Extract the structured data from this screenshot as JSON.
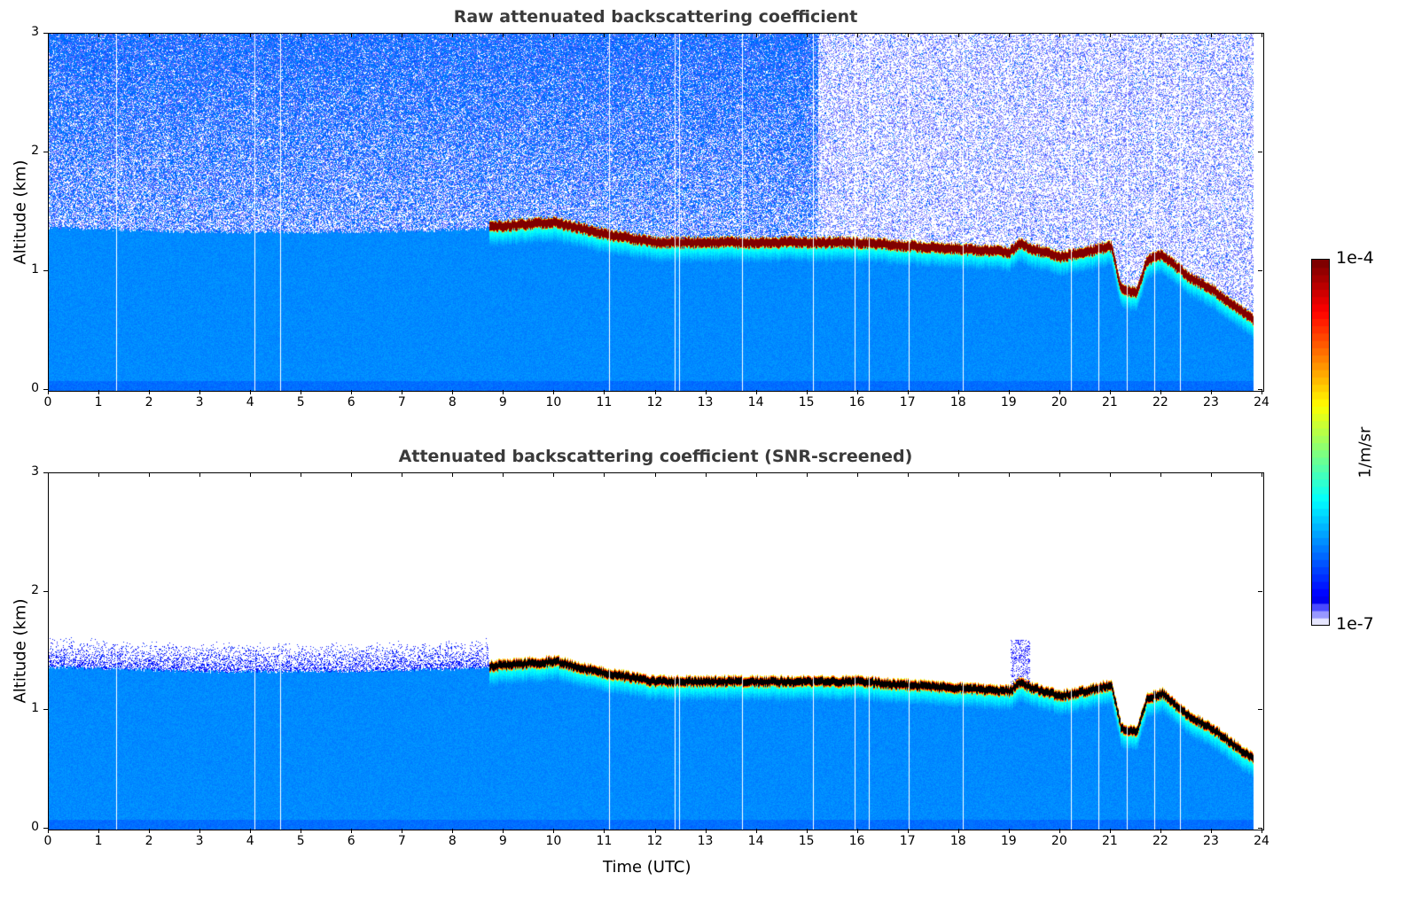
{
  "chart_data": [
    {
      "type": "heatmap",
      "title": "Raw attenuated backscattering coefficient",
      "xlabel": "",
      "ylabel": "Altitude (km)",
      "xlim": [
        0,
        24
      ],
      "ylim": [
        0,
        3
      ],
      "xticks": [
        "0",
        "1",
        "2",
        "3",
        "4",
        "5",
        "6",
        "7",
        "8",
        "9",
        "10",
        "11",
        "12",
        "13",
        "14",
        "15",
        "16",
        "17",
        "18",
        "19",
        "20",
        "21",
        "22",
        "23",
        "24"
      ],
      "yticks": [
        "0",
        "1",
        "2",
        "3"
      ],
      "screened": false
    },
    {
      "type": "heatmap",
      "title": "Attenuated backscattering coefficient (SNR-screened)",
      "xlabel": "Time (UTC)",
      "ylabel": "Altitude (km)",
      "xlim": [
        0,
        24
      ],
      "ylim": [
        0,
        3
      ],
      "xticks": [
        "0",
        "1",
        "2",
        "3",
        "4",
        "5",
        "6",
        "7",
        "8",
        "9",
        "10",
        "11",
        "12",
        "13",
        "14",
        "15",
        "16",
        "17",
        "18",
        "19",
        "20",
        "21",
        "22",
        "23",
        "24"
      ],
      "yticks": [
        "0",
        "1",
        "2",
        "3"
      ],
      "screened": true
    }
  ],
  "shared": {
    "data_end_hour": 23.8,
    "boundary_layer_top_km": [
      [
        0,
        1.37
      ],
      [
        3,
        1.33
      ],
      [
        6,
        1.33
      ],
      [
        8.7,
        1.36
      ]
    ],
    "cloud_base_km": [
      [
        8.7,
        1.33
      ],
      [
        10,
        1.37
      ],
      [
        10.5,
        1.32
      ],
      [
        11,
        1.27
      ],
      [
        12,
        1.2
      ],
      [
        14,
        1.2
      ],
      [
        16,
        1.2
      ],
      [
        17,
        1.17
      ],
      [
        19,
        1.12
      ],
      [
        19.2,
        1.2
      ],
      [
        19.4,
        1.15
      ],
      [
        20,
        1.08
      ],
      [
        20.5,
        1.12
      ],
      [
        21,
        1.17
      ],
      [
        21.2,
        0.8
      ],
      [
        21.5,
        0.78
      ],
      [
        21.7,
        1.05
      ],
      [
        22,
        1.1
      ],
      [
        22.5,
        0.92
      ],
      [
        23,
        0.8
      ],
      [
        23.8,
        0.55
      ]
    ],
    "data_gaps_hour": [
      1.33,
      4.07,
      4.57,
      11.07,
      12.37,
      12.45,
      13.7,
      15.1,
      15.93,
      16.2,
      17.0,
      18.07,
      20.2,
      20.75,
      21.3,
      21.85,
      22.35
    ]
  },
  "colorbar": {
    "label": "1/m/sr",
    "max_label": "1e-4",
    "min_label": "1e-7",
    "scale": "log",
    "range": [
      1e-07,
      0.0001
    ]
  }
}
